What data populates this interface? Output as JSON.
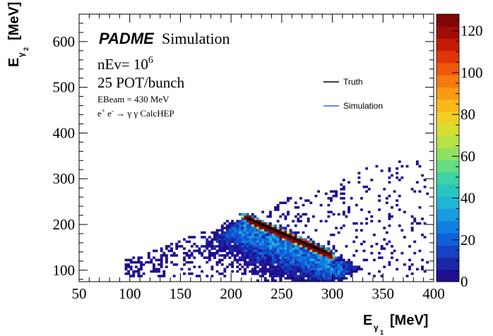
{
  "chart_data": {
    "type": "heatmap",
    "xlabel": {
      "main": "E",
      "sub": "γ",
      "subsub": "1",
      "unit": "[MeV]"
    },
    "ylabel": {
      "main": "E",
      "sub": "γ",
      "subsub": "2",
      "unit": "[MeV]"
    },
    "xlim": [
      50,
      400
    ],
    "ylim": [
      75,
      660
    ],
    "x_ticks": [
      50,
      100,
      150,
      200,
      250,
      300,
      350,
      400
    ],
    "y_ticks": [
      100,
      200,
      300,
      400,
      500,
      600
    ],
    "colorbar": {
      "range": [
        0,
        128
      ],
      "ticks": [
        0,
        20,
        40,
        60,
        80,
        100,
        120
      ],
      "palette": [
        "#1f0f8f",
        "#1a27a8",
        "#1444c4",
        "#1060d8",
        "#0f7fe0",
        "#1a9be0",
        "#20b4d5",
        "#28c6bf",
        "#3fd2a4",
        "#63dc84",
        "#8ee262",
        "#b6e346",
        "#d8dd31",
        "#f0d022",
        "#fab81a",
        "#f99a14",
        "#f57a0f",
        "#ef580b",
        "#e03607",
        "#c51b05",
        "#a00d04",
        "#800606"
      ]
    },
    "series": [
      {
        "name": "Truth",
        "kind": "line",
        "color": "#000000",
        "x": [
          215,
          298
        ],
        "y": [
          215,
          135
        ]
      },
      {
        "name": "Simulation",
        "kind": "histogram2d",
        "color": "#1a3de0",
        "description_points": {
          "ridge_x": [
            215,
            298
          ],
          "ridge_y": [
            215,
            135
          ],
          "x_extent": [
            95,
            395
          ],
          "y_extent": [
            88,
            345
          ]
        }
      }
    ],
    "annotations": {
      "experiment": "PADME",
      "simulation_word": "Simulation",
      "nev_prefix": "nEv= 10",
      "nev_exp": "6",
      "pot": "25 POT/bunch",
      "ebeam": "EBeam = 430 MeV",
      "process_e_plus": "e",
      "process_plus": "+",
      "process_e_minus": " e",
      "process_minus": "-",
      "process_rest": " → γ γ CalcHEP"
    }
  }
}
